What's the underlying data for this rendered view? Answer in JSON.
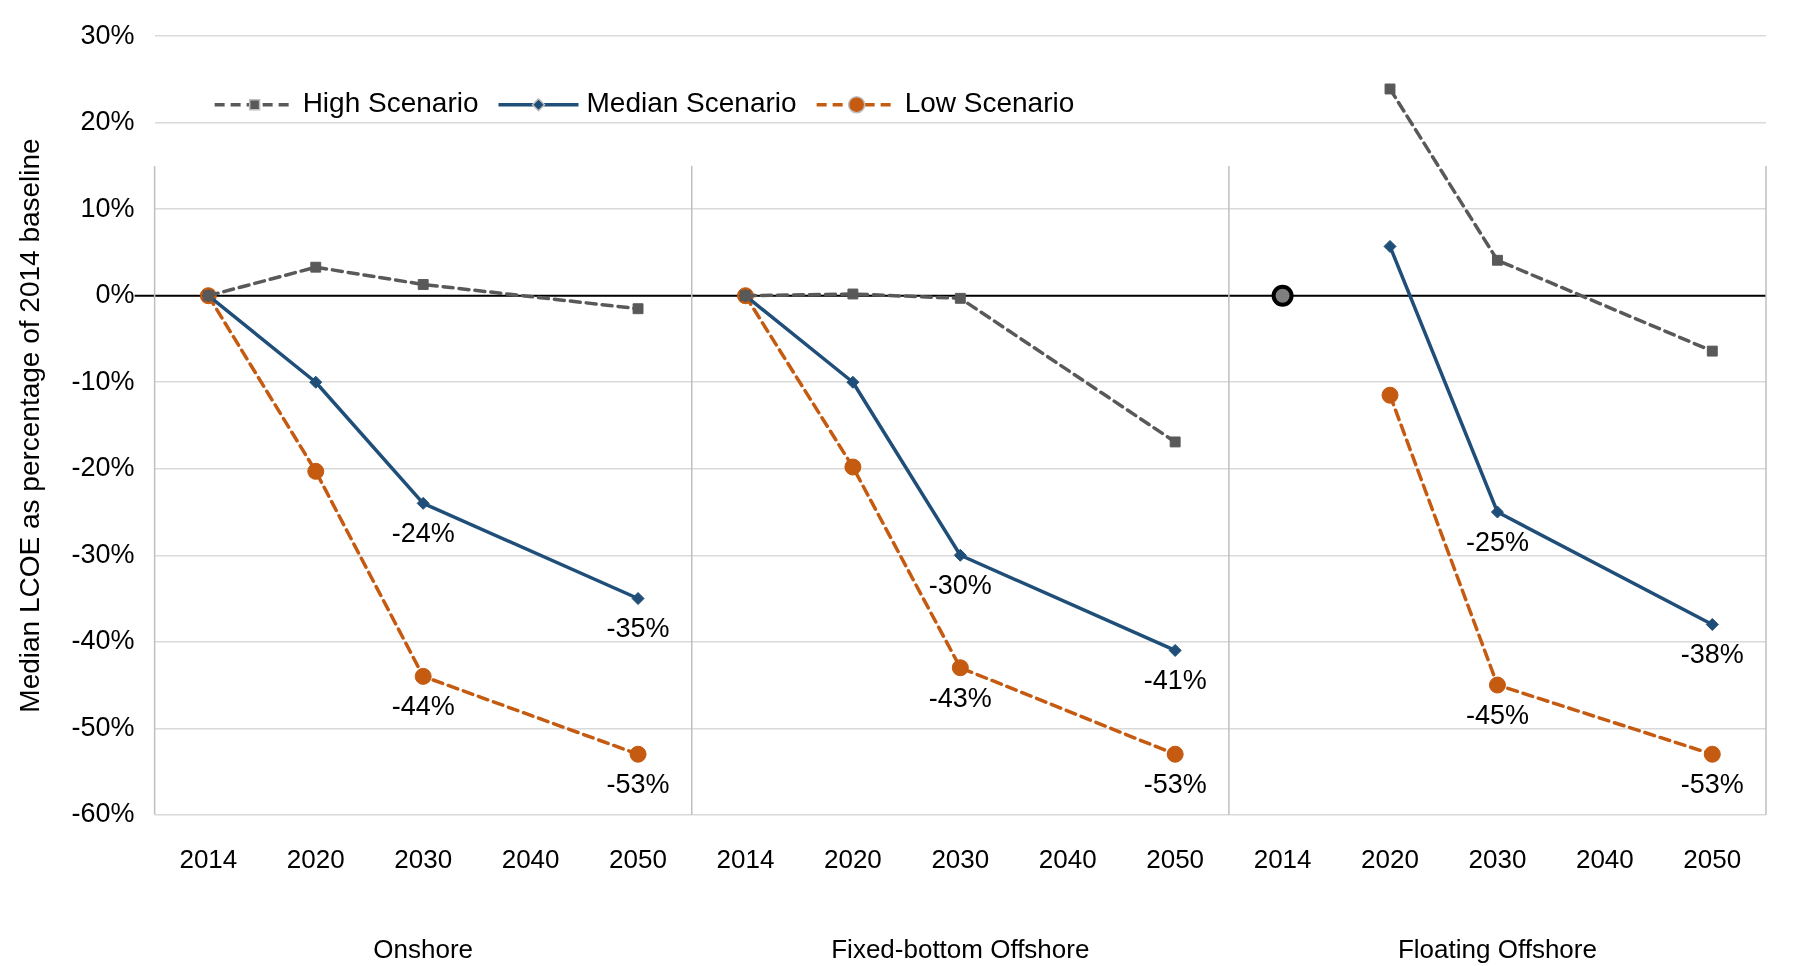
{
  "chart_data": {
    "type": "line",
    "ylabel": "Median LCOE as percentage of 2014 baseline",
    "categories": [
      "2014",
      "2020",
      "2030",
      "2040",
      "2050",
      "2014",
      "2020",
      "2030",
      "2040",
      "2050",
      "2014",
      "2020",
      "2030",
      "2040",
      "2050"
    ],
    "annotations": [
      "Onshore",
      "Fixed-bottom Offshore",
      "Floating Offshore"
    ],
    "series": [
      {
        "name": "High Scenario",
        "color": "#595959",
        "marker": "square",
        "line_style": "dashed",
        "values": [
          0,
          3.3,
          1.3,
          null,
          -1.5,
          0,
          0.2,
          -0.3,
          null,
          -16.9,
          null,
          23.9,
          4.1,
          null,
          -6.4
        ]
      },
      {
        "name": "Median Scenario",
        "color": "#1f4e79",
        "marker": "diamond",
        "line_style": "solid",
        "values": [
          0,
          -10,
          -24,
          null,
          -35,
          0,
          -10,
          -30,
          null,
          -41,
          null,
          5.7,
          -25,
          null,
          -38
        ],
        "value_labels": [
          null,
          null,
          "-24%",
          null,
          "-35%",
          null,
          null,
          "-30%",
          null,
          "-41%",
          null,
          null,
          "-25%",
          null,
          "-38%"
        ]
      },
      {
        "name": "Low Scenario",
        "color": "#c55a11",
        "marker": "circle",
        "line_style": "dashed",
        "values": [
          0,
          -20.3,
          -44,
          null,
          -53,
          0,
          -19.8,
          -43,
          null,
          -53,
          null,
          -11.5,
          -45,
          null,
          -53
        ],
        "value_labels": [
          null,
          null,
          "-44%",
          null,
          "-53%",
          null,
          null,
          "-43%",
          null,
          "-53%",
          null,
          null,
          "-45%",
          null,
          "-53%"
        ]
      },
      {
        "type": "scatter",
        "color": "#000000",
        "marker": "circle",
        "values": [
          null,
          null,
          null,
          null,
          null,
          null,
          null,
          null,
          null,
          null,
          0,
          null,
          null,
          null,
          null
        ]
      }
    ],
    "ylim": [
      -60,
      30
    ],
    "yticks": [
      {
        "value": -60,
        "label": "-60%"
      },
      {
        "value": -50,
        "label": "-50%"
      },
      {
        "value": -40,
        "label": "-40%"
      },
      {
        "value": -30,
        "label": "-30%"
      },
      {
        "value": -20,
        "label": "-20%"
      },
      {
        "value": -10,
        "label": "-10%"
      },
      {
        "value": 0,
        "label": "0%"
      },
      {
        "value": 10,
        "label": "10%"
      },
      {
        "value": 20,
        "label": "20%"
      },
      {
        "value": 30,
        "label": "30%"
      }
    ],
    "ref_lines": [
      {
        "axis": "y",
        "value": 0,
        "color": "#000000"
      }
    ],
    "grid": "y",
    "legend": "top left"
  }
}
